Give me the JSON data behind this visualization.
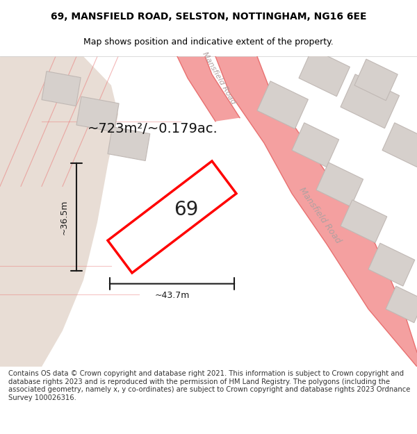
{
  "title_line1": "69, MANSFIELD ROAD, SELSTON, NOTTINGHAM, NG16 6EE",
  "title_line2": "Map shows position and indicative extent of the property.",
  "area_label": "~723m²/~0.179ac.",
  "number_label": "69",
  "width_label": "~43.7m",
  "height_label": "~36.5m",
  "footer_text": "Contains OS data © Crown copyright and database right 2021. This information is subject to Crown copyright and database rights 2023 and is reproduced with the permission of HM Land Registry. The polygons (including the associated geometry, namely x, y co-ordinates) are subject to Crown copyright and database rights 2023 Ordnance Survey 100026316.",
  "bg_color": "#f5f0ec",
  "map_bg_color": "#ffffff",
  "road_color": "#f4a0a0",
  "road_outline_color": "#e87070",
  "building_fill": "#d6d0cc",
  "building_stroke": "#c0b8b4",
  "plot_color": "#ff0000",
  "plot_fill": "#ffffff",
  "dim_line_color": "#1a1a1a",
  "road_label_color": "#b0a0a0",
  "title_color": "#000000",
  "footer_color": "#333333",
  "mansfield_road_label": "Mansfield Road",
  "mansfield_road_top_label": "Mansfield Road"
}
